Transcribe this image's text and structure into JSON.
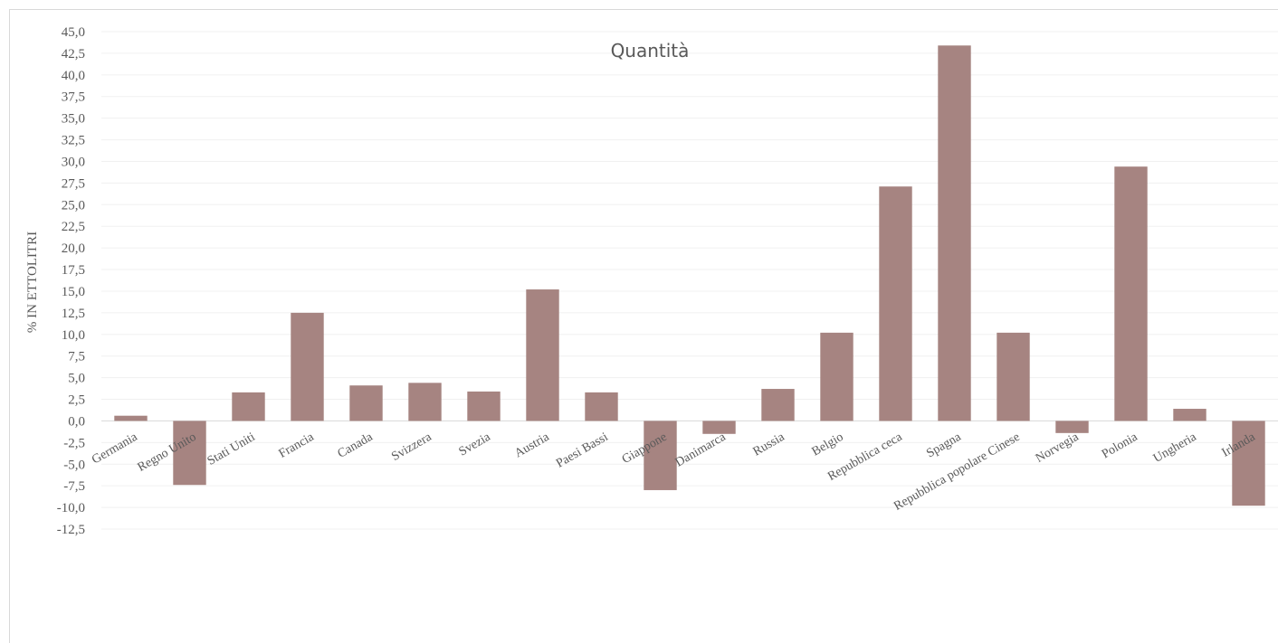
{
  "chart_data": {
    "type": "bar",
    "title": "Quantità",
    "ylabel": "% IN ETTOLITRI",
    "xlabel": "",
    "ylim": [
      -12.5,
      45.0
    ],
    "ytick_step": 2.5,
    "grid": true,
    "bar_color": "#a68481",
    "categories": [
      "Germania",
      "Regno Unito",
      "Stati Uniti",
      "Francia",
      "Canada",
      "Svizzera",
      "Svezia",
      "Austria",
      "Paesi Bassi",
      "Giappone",
      "Danimarca",
      "Russia",
      "Belgio",
      "Repubblica ceca",
      "Spagna",
      "Repubblica popolare Cinese",
      "Norvegia",
      "Polonia",
      "Ungheria",
      "Irlanda"
    ],
    "values": [
      0.6,
      -7.4,
      3.3,
      12.5,
      4.1,
      4.4,
      3.4,
      15.2,
      3.3,
      -8.0,
      -1.5,
      3.7,
      10.2,
      27.1,
      43.4,
      10.2,
      -1.4,
      29.4,
      1.4,
      -9.8
    ]
  }
}
